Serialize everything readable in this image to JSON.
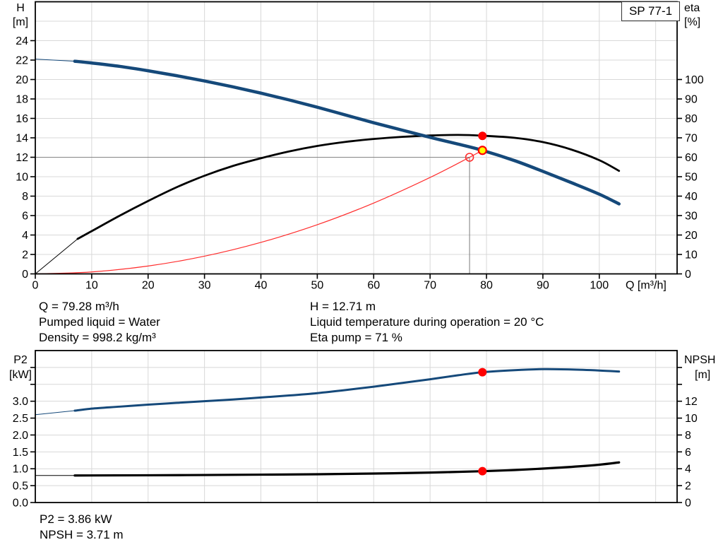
{
  "title_box": {
    "label": "SP 77-1"
  },
  "colors": {
    "blue": "#15497a",
    "black": "#000000",
    "red": "#ff2d2d",
    "marker_red": "#ff0000",
    "yellow": "#ffff00",
    "grid": "#d8d8d8",
    "crosshair": "#858585",
    "frame": "#000000",
    "text": "#000000"
  },
  "readouts": {
    "top_left": [
      "Q = 79.28 m³/h",
      "Pumped liquid = Water",
      "Density = 998.2 kg/m³"
    ],
    "top_right": [
      "H = 12.71 m",
      "Liquid temperature during operation = 20 °C",
      "Eta pump = 71 %"
    ],
    "bottom": [
      "P2 = 3.86 kW",
      "NPSH = 3.71 m"
    ]
  },
  "chart_data": [
    {
      "id": "head-efficiency-chart",
      "type": "line",
      "x_axis": {
        "label": "Q [m³/h]",
        "min": 0,
        "max": 113.8,
        "ticks": [
          0,
          10,
          20,
          30,
          40,
          50,
          60,
          70,
          80,
          90,
          100
        ],
        "tick_labels": [
          "0",
          "10",
          "20",
          "30",
          "40",
          "50",
          "60",
          "70",
          "80",
          "90",
          "100"
        ],
        "unlabeled": [
          110
        ],
        "grid": [
          10,
          20,
          30,
          40,
          50,
          60,
          70,
          80,
          90,
          100,
          110
        ]
      },
      "left_axis": {
        "title": "H",
        "unit": "[m]",
        "min": 0,
        "max": 28,
        "ticks": [
          0,
          2,
          4,
          6,
          8,
          10,
          12,
          14,
          16,
          18,
          20,
          22,
          24
        ],
        "tick_labels": [
          "0",
          "2",
          "4",
          "6",
          "8",
          "10",
          "12",
          "14",
          "16",
          "18",
          "20",
          "22",
          "24"
        ],
        "unlabeled": [],
        "grid": [
          2,
          4,
          6,
          8,
          10,
          12,
          14,
          16,
          18,
          20,
          22,
          24,
          26
        ]
      },
      "right_axis": {
        "title": "eta",
        "unit": "[%]",
        "min": 0,
        "max": 140,
        "ticks": [
          0,
          10,
          20,
          30,
          40,
          50,
          60,
          70,
          80,
          90,
          100
        ],
        "tick_labels": [
          "0",
          "10",
          "20",
          "30",
          "40",
          "50",
          "60",
          "70",
          "80",
          "90",
          "100"
        ],
        "unlabeled": []
      },
      "crosshair": {
        "q": 77,
        "value": 12,
        "axis": "left"
      },
      "series": [
        {
          "name": "system-curve",
          "color": "red",
          "axis": "left",
          "width": 1.2,
          "thin": null,
          "points": [
            [
              0,
              0
            ],
            [
              10,
              0.2
            ],
            [
              20,
              0.81
            ],
            [
              30,
              1.82
            ],
            [
              40,
              3.24
            ],
            [
              50,
              5.06
            ],
            [
              60,
              7.29
            ],
            [
              70,
              9.92
            ],
            [
              77,
              12.0
            ],
            [
              79.28,
              12.72
            ]
          ]
        },
        {
          "name": "efficiency-curve",
          "color": "black",
          "axis": "right",
          "width": 2.8,
          "thin": [
            [
              0,
              0
            ],
            [
              7.5,
              18
            ]
          ],
          "points": [
            [
              7.5,
              18
            ],
            [
              10,
              22
            ],
            [
              15,
              30
            ],
            [
              20,
              37.5
            ],
            [
              25,
              44.5
            ],
            [
              30,
              50.5
            ],
            [
              35,
              55.5
            ],
            [
              40,
              59.5
            ],
            [
              45,
              63
            ],
            [
              50,
              65.8
            ],
            [
              55,
              67.9
            ],
            [
              60,
              69.4
            ],
            [
              65,
              70.5
            ],
            [
              70,
              71.2
            ],
            [
              75,
              71.5
            ],
            [
              79.28,
              71.1
            ],
            [
              85,
              70
            ],
            [
              90,
              67.8
            ],
            [
              95,
              64
            ],
            [
              100,
              58.5
            ],
            [
              103.5,
              53
            ]
          ]
        },
        {
          "name": "head-curve",
          "color": "blue",
          "axis": "left",
          "width": 4.5,
          "thin": [
            [
              0,
              22.1
            ],
            [
              7,
              21.88
            ]
          ],
          "points": [
            [
              7,
              21.88
            ],
            [
              10,
              21.7
            ],
            [
              15,
              21.35
            ],
            [
              20,
              20.9
            ],
            [
              25,
              20.4
            ],
            [
              30,
              19.85
            ],
            [
              35,
              19.25
            ],
            [
              40,
              18.6
            ],
            [
              45,
              17.9
            ],
            [
              50,
              17.15
            ],
            [
              55,
              16.35
            ],
            [
              60,
              15.55
            ],
            [
              65,
              14.8
            ],
            [
              70,
              14.05
            ],
            [
              75,
              13.35
            ],
            [
              79.28,
              12.71
            ],
            [
              85,
              11.65
            ],
            [
              90,
              10.55
            ],
            [
              95,
              9.4
            ],
            [
              100,
              8.2
            ],
            [
              103.5,
              7.2
            ]
          ]
        }
      ],
      "markers": [
        {
          "name": "requested-duty-point",
          "style": "open",
          "q": 77,
          "value": 12,
          "axis": "left"
        },
        {
          "name": "duty-point-head",
          "style": "yellow",
          "q": 79.28,
          "value": 12.71,
          "axis": "left"
        },
        {
          "name": "duty-point-eta",
          "style": "red",
          "q": 79.28,
          "value": 71,
          "axis": "right"
        }
      ]
    },
    {
      "id": "power-npsh-chart",
      "type": "line",
      "x_axis": {
        "label": null,
        "min": 0,
        "max": 113.8,
        "ticks": [],
        "tick_labels": [],
        "unlabeled": [],
        "grid": [
          10,
          20,
          30,
          40,
          50,
          60,
          70,
          80,
          90,
          100,
          110
        ]
      },
      "left_axis": {
        "title": "P2",
        "unit": "[kW]",
        "min": 0,
        "max": 4.5,
        "ticks": [
          0,
          0.5,
          1,
          1.5,
          2,
          2.5,
          3
        ],
        "tick_labels": [
          "0.0",
          "0.5",
          "1.0",
          "1.5",
          "2.0",
          "2.5",
          "3.0"
        ],
        "unlabeled": [
          3.5,
          4
        ],
        "grid": [
          0.5,
          1,
          1.5,
          2,
          2.5,
          3,
          3.5,
          4
        ]
      },
      "right_axis": {
        "title": "NPSH",
        "unit": "[m]",
        "min": 0,
        "max": 18,
        "ticks": [
          0,
          2,
          4,
          6,
          8,
          10,
          12
        ],
        "tick_labels": [
          "0",
          "2",
          "4",
          "6",
          "8",
          "10",
          "12"
        ],
        "unlabeled": [
          14,
          16
        ]
      },
      "crosshair": null,
      "series": [
        {
          "name": "p2-curve",
          "color": "blue",
          "axis": "left",
          "width": 3,
          "thin": [
            [
              0,
              2.6
            ],
            [
              7,
              2.72
            ]
          ],
          "points": [
            [
              7,
              2.72
            ],
            [
              10,
              2.78
            ],
            [
              15,
              2.84
            ],
            [
              20,
              2.9
            ],
            [
              25,
              2.95
            ],
            [
              30,
              3.0
            ],
            [
              35,
              3.05
            ],
            [
              40,
              3.11
            ],
            [
              45,
              3.17
            ],
            [
              50,
              3.24
            ],
            [
              55,
              3.33
            ],
            [
              60,
              3.43
            ],
            [
              65,
              3.54
            ],
            [
              70,
              3.65
            ],
            [
              75,
              3.77
            ],
            [
              79.28,
              3.86
            ],
            [
              85,
              3.92
            ],
            [
              90,
              3.95
            ],
            [
              95,
              3.94
            ],
            [
              100,
              3.91
            ],
            [
              103.5,
              3.88
            ]
          ]
        },
        {
          "name": "npsh-curve",
          "color": "black",
          "axis": "right",
          "width": 3.2,
          "thin": [
            [
              0,
              3.2
            ],
            [
              7,
              3.2
            ]
          ],
          "points": [
            [
              7,
              3.2
            ],
            [
              20,
              3.23
            ],
            [
              30,
              3.26
            ],
            [
              40,
              3.3
            ],
            [
              50,
              3.35
            ],
            [
              60,
              3.43
            ],
            [
              70,
              3.55
            ],
            [
              79.28,
              3.71
            ],
            [
              85,
              3.85
            ],
            [
              90,
              4.02
            ],
            [
              95,
              4.22
            ],
            [
              100,
              4.48
            ],
            [
              103.5,
              4.75
            ]
          ]
        }
      ],
      "markers": [
        {
          "name": "duty-point-p2",
          "style": "red",
          "q": 79.28,
          "value": 3.86,
          "axis": "left"
        },
        {
          "name": "duty-point-npsh",
          "style": "red",
          "q": 79.28,
          "value": 3.71,
          "axis": "right"
        }
      ]
    }
  ]
}
